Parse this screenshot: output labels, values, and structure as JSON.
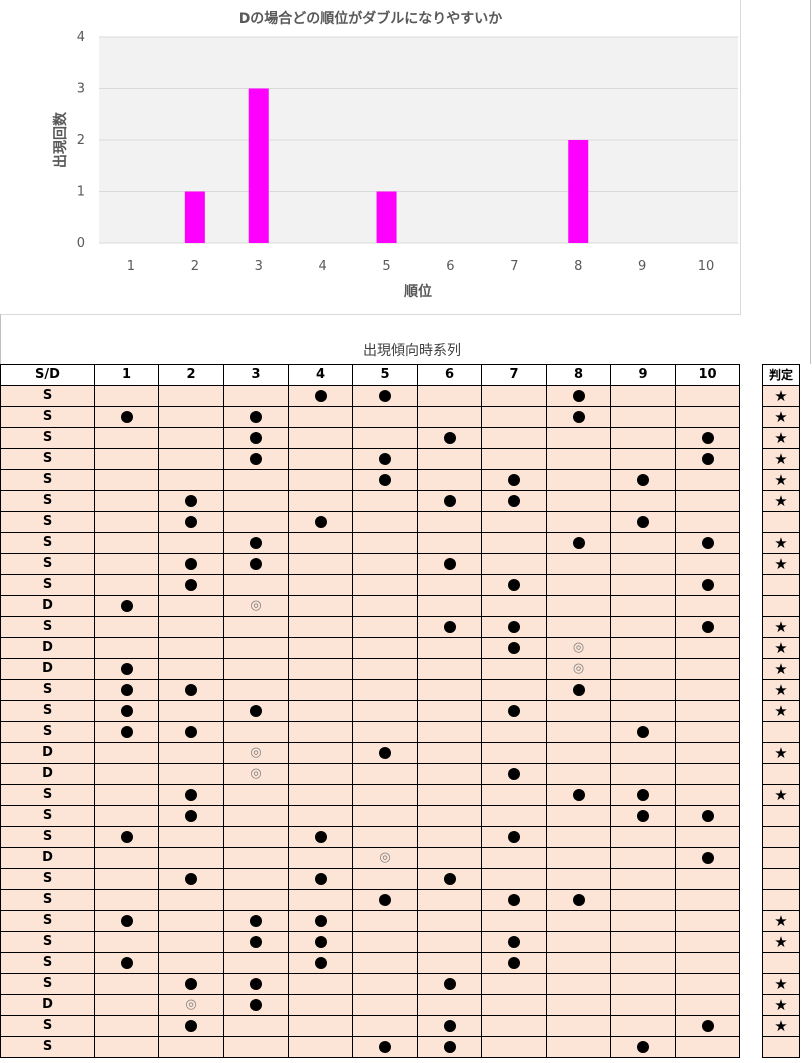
{
  "chart_data": {
    "type": "bar",
    "title": "Dの場合どの順位がダブルになりやすいか",
    "xlabel": "順位",
    "ylabel": "出現回数",
    "categories": [
      "1",
      "2",
      "3",
      "4",
      "5",
      "6",
      "7",
      "8",
      "9",
      "10"
    ],
    "values": [
      0,
      1,
      3,
      0,
      1,
      0,
      0,
      2,
      0,
      0
    ],
    "ylim": [
      0,
      4
    ],
    "yticks": [
      "0",
      "1",
      "2",
      "3",
      "4"
    ],
    "bar_color": "#ff00ff",
    "plot_background": "#f2f2f2",
    "grid": true,
    "legend": "none"
  },
  "table": {
    "title": "出現傾向時系列",
    "headers": [
      "S/D",
      "1",
      "2",
      "3",
      "4",
      "5",
      "6",
      "7",
      "8",
      "9",
      "10"
    ],
    "judge_header": "判定",
    "dot_symbol": "●",
    "double_symbol": "◎",
    "star_symbol": "★",
    "rows": [
      {
        "type": "S",
        "cells": [
          "",
          "",
          "",
          "●",
          "●",
          "",
          "",
          "●",
          "",
          ""
        ],
        "judge": "★"
      },
      {
        "type": "S",
        "cells": [
          "●",
          "",
          "●",
          "",
          "",
          "",
          "",
          "●",
          "",
          ""
        ],
        "judge": "★"
      },
      {
        "type": "S",
        "cells": [
          "",
          "",
          "●",
          "",
          "",
          "●",
          "",
          "",
          "",
          "●"
        ],
        "judge": "★"
      },
      {
        "type": "S",
        "cells": [
          "",
          "",
          "●",
          "",
          "●",
          "",
          "",
          "",
          "",
          "●"
        ],
        "judge": "★"
      },
      {
        "type": "S",
        "cells": [
          "",
          "",
          "",
          "",
          "●",
          "",
          "●",
          "",
          "●",
          ""
        ],
        "judge": "★"
      },
      {
        "type": "S",
        "cells": [
          "",
          "●",
          "",
          "",
          "",
          "●",
          "●",
          "",
          "",
          ""
        ],
        "judge": "★"
      },
      {
        "type": "S",
        "cells": [
          "",
          "●",
          "",
          "●",
          "",
          "",
          "",
          "",
          "●",
          ""
        ],
        "judge": ""
      },
      {
        "type": "S",
        "cells": [
          "",
          "",
          "●",
          "",
          "",
          "",
          "",
          "●",
          "",
          "●"
        ],
        "judge": "★"
      },
      {
        "type": "S",
        "cells": [
          "",
          "●",
          "●",
          "",
          "",
          "●",
          "",
          "",
          "",
          ""
        ],
        "judge": "★"
      },
      {
        "type": "S",
        "cells": [
          "",
          "●",
          "",
          "",
          "",
          "",
          "●",
          "",
          "",
          "●"
        ],
        "judge": ""
      },
      {
        "type": "D",
        "cells": [
          "●",
          "",
          "◎",
          "",
          "",
          "",
          "",
          "",
          "",
          ""
        ],
        "judge": ""
      },
      {
        "type": "S",
        "cells": [
          "",
          "",
          "",
          "",
          "",
          "●",
          "●",
          "",
          "",
          "●"
        ],
        "judge": "★"
      },
      {
        "type": "D",
        "cells": [
          "",
          "",
          "",
          "",
          "",
          "",
          "●",
          "◎",
          "",
          ""
        ],
        "judge": "★"
      },
      {
        "type": "D",
        "cells": [
          "●",
          "",
          "",
          "",
          "",
          "",
          "",
          "◎",
          "",
          ""
        ],
        "judge": "★"
      },
      {
        "type": "S",
        "cells": [
          "●",
          "●",
          "",
          "",
          "",
          "",
          "",
          "●",
          "",
          ""
        ],
        "judge": "★"
      },
      {
        "type": "S",
        "cells": [
          "●",
          "",
          "●",
          "",
          "",
          "",
          "●",
          "",
          "",
          ""
        ],
        "judge": "★"
      },
      {
        "type": "S",
        "cells": [
          "●",
          "●",
          "",
          "",
          "",
          "",
          "",
          "",
          "●",
          ""
        ],
        "judge": ""
      },
      {
        "type": "D",
        "cells": [
          "",
          "",
          "◎",
          "",
          "●",
          "",
          "",
          "",
          "",
          ""
        ],
        "judge": "★"
      },
      {
        "type": "D",
        "cells": [
          "",
          "",
          "◎",
          "",
          "",
          "",
          "●",
          "",
          "",
          ""
        ],
        "judge": ""
      },
      {
        "type": "S",
        "cells": [
          "",
          "●",
          "",
          "",
          "",
          "",
          "",
          "●",
          "●",
          ""
        ],
        "judge": "★"
      },
      {
        "type": "S",
        "cells": [
          "",
          "●",
          "",
          "",
          "",
          "",
          "",
          "",
          "●",
          "●"
        ],
        "judge": ""
      },
      {
        "type": "S",
        "cells": [
          "●",
          "",
          "",
          "●",
          "",
          "",
          "●",
          "",
          "",
          ""
        ],
        "judge": ""
      },
      {
        "type": "D",
        "cells": [
          "",
          "",
          "",
          "",
          "◎",
          "",
          "",
          "",
          "",
          "●"
        ],
        "judge": ""
      },
      {
        "type": "S",
        "cells": [
          "",
          "●",
          "",
          "●",
          "",
          "●",
          "",
          "",
          "",
          ""
        ],
        "judge": ""
      },
      {
        "type": "S",
        "cells": [
          "",
          "",
          "",
          "",
          "●",
          "",
          "●",
          "●",
          "",
          ""
        ],
        "judge": ""
      },
      {
        "type": "S",
        "cells": [
          "●",
          "",
          "●",
          "●",
          "",
          "",
          "",
          "",
          "",
          ""
        ],
        "judge": "★"
      },
      {
        "type": "S",
        "cells": [
          "",
          "",
          "●",
          "●",
          "",
          "",
          "●",
          "",
          "",
          ""
        ],
        "judge": "★"
      },
      {
        "type": "S",
        "cells": [
          "●",
          "",
          "",
          "●",
          "",
          "",
          "●",
          "",
          "",
          ""
        ],
        "judge": ""
      },
      {
        "type": "S",
        "cells": [
          "",
          "●",
          "●",
          "",
          "",
          "●",
          "",
          "",
          "",
          ""
        ],
        "judge": "★"
      },
      {
        "type": "D",
        "cells": [
          "",
          "◎",
          "●",
          "",
          "",
          "",
          "",
          "",
          "",
          ""
        ],
        "judge": "★"
      },
      {
        "type": "S",
        "cells": [
          "",
          "●",
          "",
          "",
          "",
          "●",
          "",
          "",
          "",
          "●"
        ],
        "judge": "★"
      },
      {
        "type": "S",
        "cells": [
          "",
          "",
          "",
          "",
          "●",
          "●",
          "",
          "",
          "●",
          ""
        ],
        "judge": ""
      }
    ]
  }
}
